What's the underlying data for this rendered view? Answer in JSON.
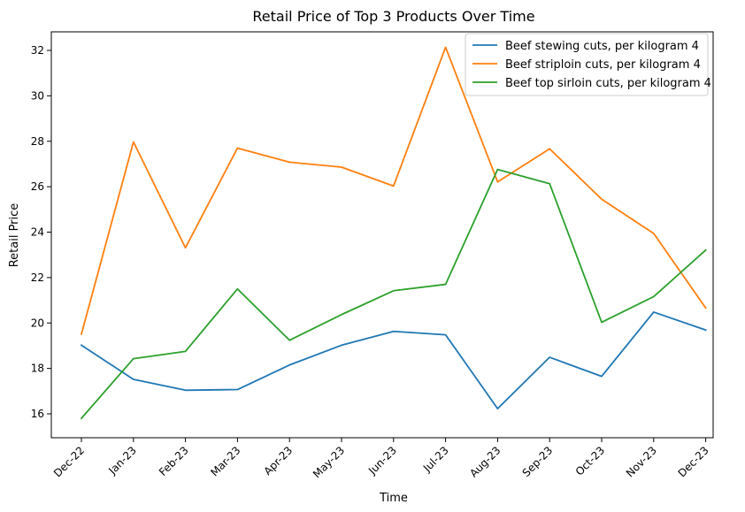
{
  "chart_data": {
    "type": "line",
    "title": "Retail Price of Top 3 Products Over Time",
    "xlabel": "Time",
    "ylabel": "Retail Price",
    "categories": [
      "Dec-22",
      "Jan-23",
      "Feb-23",
      "Mar-23",
      "Apr-23",
      "May-23",
      "Jun-23",
      "Jul-23",
      "Aug-23",
      "Sep-23",
      "Oct-23",
      "Nov-23",
      "Dec-23"
    ],
    "ylim": [
      15,
      33
    ],
    "yticks": [
      16,
      18,
      20,
      22,
      24,
      26,
      28,
      30,
      32
    ],
    "grid": false,
    "legend_position": "top-right",
    "series": [
      {
        "name": "Beef stewing cuts, per kilogram 4",
        "color": "#1f77b4",
        "values": [
          19.02,
          17.52,
          17.04,
          17.07,
          18.15,
          19.02,
          19.63,
          19.48,
          16.23,
          18.49,
          17.65,
          20.48,
          19.69
        ]
      },
      {
        "name": "Beef striploin cuts, per kilogram 4",
        "color": "#ff7f0e",
        "values": [
          19.51,
          27.97,
          23.31,
          27.7,
          27.08,
          26.86,
          26.03,
          32.14,
          26.21,
          27.67,
          25.45,
          23.94,
          20.66
        ]
      },
      {
        "name": "Beef top sirloin cuts, per kilogram 4",
        "color": "#2ca02c",
        "values": [
          15.8,
          18.43,
          18.75,
          21.5,
          19.24,
          20.37,
          21.42,
          21.7,
          26.76,
          26.13,
          20.03,
          21.16,
          23.21
        ]
      }
    ]
  }
}
